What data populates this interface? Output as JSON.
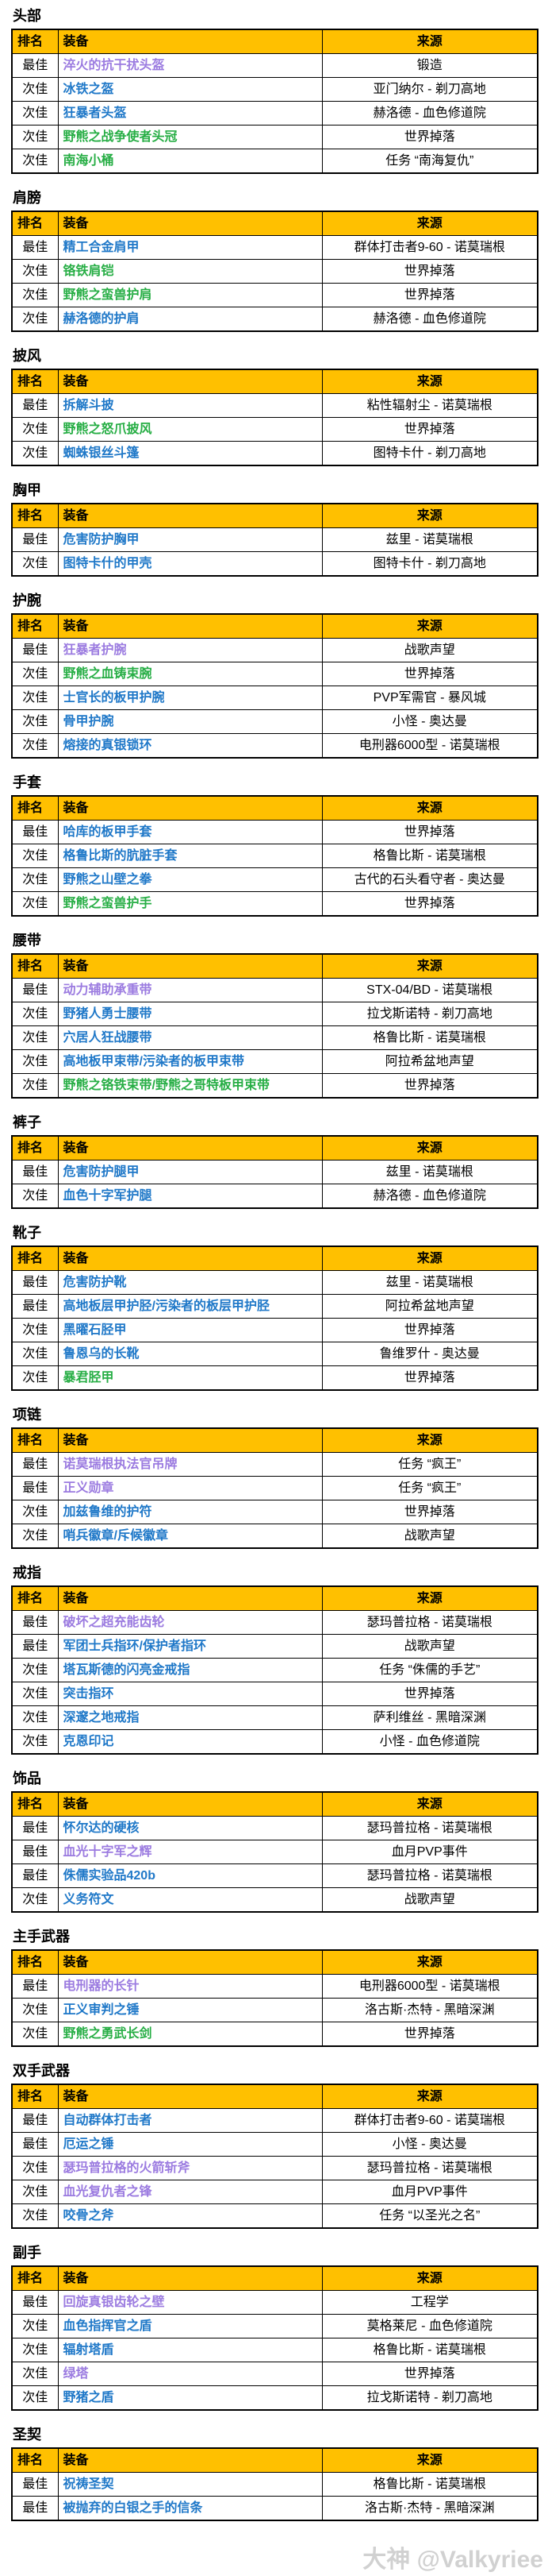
{
  "page": {
    "watermark": "大神 @Valkyriee"
  },
  "columns": {
    "rank": "排名",
    "item": "装备",
    "source": "来源"
  },
  "colors": {
    "header_bg": "#FFC000",
    "epic": "#9B7BE0",
    "rare": "#1F78C8",
    "uncommon": "#27AE45"
  },
  "sections": [
    {
      "title": "头部",
      "rows": [
        {
          "rank": "最佳",
          "item": "淬火的抗干扰头盔",
          "quality": "epic",
          "source": "锻造"
        },
        {
          "rank": "次佳",
          "item": "冰铁之盔",
          "quality": "rare",
          "source": "亚门纳尔 - 剃刀高地"
        },
        {
          "rank": "次佳",
          "item": "狂暴者头盔",
          "quality": "rare",
          "source": "赫洛德 - 血色修道院"
        },
        {
          "rank": "次佳",
          "item": "野熊之战争使者头冠",
          "quality": "uncommon",
          "source": "世界掉落"
        },
        {
          "rank": "次佳",
          "item": "南海小桶",
          "quality": "uncommon",
          "source": "任务 “南海复仇”"
        }
      ]
    },
    {
      "title": "肩膀",
      "rows": [
        {
          "rank": "最佳",
          "item": "精工合金肩甲",
          "quality": "rare",
          "source": "群体打击者9-60 - 诺莫瑞根"
        },
        {
          "rank": "次佳",
          "item": "铬铁肩铠",
          "quality": "uncommon",
          "source": "世界掉落"
        },
        {
          "rank": "次佳",
          "item": "野熊之蛮兽护肩",
          "quality": "uncommon",
          "source": "世界掉落"
        },
        {
          "rank": "次佳",
          "item": "赫洛德的护肩",
          "quality": "rare",
          "source": "赫洛德 - 血色修道院"
        }
      ]
    },
    {
      "title": "披风",
      "rows": [
        {
          "rank": "最佳",
          "item": "拆解斗披",
          "quality": "rare",
          "source": "粘性辐射尘 - 诺莫瑞根"
        },
        {
          "rank": "次佳",
          "item": "野熊之怒爪披风",
          "quality": "uncommon",
          "source": "世界掉落"
        },
        {
          "rank": "次佳",
          "item": "蜘蛛银丝斗篷",
          "quality": "rare",
          "source": "图特卡什 - 剃刀高地"
        }
      ]
    },
    {
      "title": "胸甲",
      "rows": [
        {
          "rank": "最佳",
          "item": "危害防护胸甲",
          "quality": "rare",
          "source": "兹里 - 诺莫瑞根"
        },
        {
          "rank": "次佳",
          "item": "图特卡什的甲壳",
          "quality": "rare",
          "source": "图特卡什 - 剃刀高地"
        }
      ]
    },
    {
      "title": "护腕",
      "rows": [
        {
          "rank": "最佳",
          "item": "狂暴者护腕",
          "quality": "epic",
          "source": "战歌声望"
        },
        {
          "rank": "次佳",
          "item": "野熊之血铸束腕",
          "quality": "uncommon",
          "source": "世界掉落"
        },
        {
          "rank": "次佳",
          "item": "士官长的板甲护腕",
          "quality": "rare",
          "source": "PVP军需官 - 暴风城"
        },
        {
          "rank": "次佳",
          "item": "骨甲护腕",
          "quality": "rare",
          "source": "小怪 - 奥达曼"
        },
        {
          "rank": "次佳",
          "item": "熔接的真银锁环",
          "quality": "rare",
          "source": "电刑器6000型 - 诺莫瑞根"
        }
      ]
    },
    {
      "title": "手套",
      "rows": [
        {
          "rank": "最佳",
          "item": "哈库的板甲手套",
          "quality": "rare",
          "source": "世界掉落"
        },
        {
          "rank": "次佳",
          "item": "格鲁比斯的肮脏手套",
          "quality": "rare",
          "source": "格鲁比斯 - 诺莫瑞根"
        },
        {
          "rank": "次佳",
          "item": "野熊之山壁之拳",
          "quality": "rare",
          "source": "古代的石头看守者 - 奥达曼"
        },
        {
          "rank": "次佳",
          "item": "野熊之蛮兽护手",
          "quality": "uncommon",
          "source": "世界掉落"
        }
      ]
    },
    {
      "title": "腰带",
      "rows": [
        {
          "rank": "最佳",
          "item": "动力辅助承重带",
          "quality": "epic",
          "source": "STX-04/BD - 诺莫瑞根"
        },
        {
          "rank": "次佳",
          "item": "野猪人勇士腰带",
          "quality": "rare",
          "source": "拉戈斯诺特 - 剃刀高地"
        },
        {
          "rank": "次佳",
          "item": "穴居人狂战腰带",
          "quality": "rare",
          "source": "格鲁比斯 - 诺莫瑞根"
        },
        {
          "rank": "次佳",
          "item": "高地板甲束带/污染者的板甲束带",
          "quality": "rare",
          "source": "阿拉希盆地声望"
        },
        {
          "rank": "次佳",
          "item": "野熊之铬铁束带/野熊之哥特板甲束带",
          "quality": "uncommon",
          "source": "世界掉落"
        }
      ]
    },
    {
      "title": "裤子",
      "rows": [
        {
          "rank": "最佳",
          "item": "危害防护腿甲",
          "quality": "rare",
          "source": "兹里 - 诺莫瑞根"
        },
        {
          "rank": "次佳",
          "item": "血色十字军护腿",
          "quality": "rare",
          "source": "赫洛德 - 血色修道院"
        }
      ]
    },
    {
      "title": "靴子",
      "rows": [
        {
          "rank": "最佳",
          "item": "危害防护靴",
          "quality": "rare",
          "source": "兹里 - 诺莫瑞根"
        },
        {
          "rank": "最佳",
          "item": "高地板层甲护胫/污染者的板层甲护胫",
          "quality": "rare",
          "source": "阿拉希盆地声望"
        },
        {
          "rank": "次佳",
          "item": "黑曜石胫甲",
          "quality": "rare",
          "source": "世界掉落"
        },
        {
          "rank": "次佳",
          "item": "鲁恩乌的长靴",
          "quality": "rare",
          "source": "鲁维罗什 - 奥达曼"
        },
        {
          "rank": "次佳",
          "item": "暴君胫甲",
          "quality": "uncommon",
          "source": "世界掉落"
        }
      ]
    },
    {
      "title": "项链",
      "rows": [
        {
          "rank": "最佳",
          "item": "诺莫瑞根执法官吊牌",
          "quality": "epic",
          "source": "任务 “疯王”"
        },
        {
          "rank": "最佳",
          "item": "正义勋章",
          "quality": "epic",
          "source": "任务 “疯王”"
        },
        {
          "rank": "次佳",
          "item": "加兹鲁维的护符",
          "quality": "rare",
          "source": "世界掉落"
        },
        {
          "rank": "次佳",
          "item": "哨兵徽章/斥候徽章",
          "quality": "rare",
          "source": "战歌声望"
        }
      ]
    },
    {
      "title": "戒指",
      "rows": [
        {
          "rank": "最佳",
          "item": "破坏之超充能齿轮",
          "quality": "epic",
          "source": "瑟玛普拉格 - 诺莫瑞根"
        },
        {
          "rank": "最佳",
          "item": "军团士兵指环/保护者指环",
          "quality": "rare",
          "source": "战歌声望"
        },
        {
          "rank": "次佳",
          "item": "塔瓦斯德的闪亮金戒指",
          "quality": "rare",
          "source": "任务 “侏儒的手艺”"
        },
        {
          "rank": "次佳",
          "item": "突击指环",
          "quality": "rare",
          "source": "世界掉落"
        },
        {
          "rank": "次佳",
          "item": "深邃之地戒指",
          "quality": "rare",
          "source": "萨利维丝 - 黑暗深渊"
        },
        {
          "rank": "次佳",
          "item": "克恩印记",
          "quality": "rare",
          "source": "小怪 - 血色修道院"
        }
      ]
    },
    {
      "title": "饰品",
      "rows": [
        {
          "rank": "最佳",
          "item": "怀尔达的硬核",
          "quality": "rare",
          "source": "瑟玛普拉格 - 诺莫瑞根"
        },
        {
          "rank": "最佳",
          "item": "血光十字军之辉",
          "quality": "epic",
          "source": "血月PVP事件"
        },
        {
          "rank": "最佳",
          "item": "侏儒实验品420b",
          "quality": "rare",
          "source": "瑟玛普拉格 - 诺莫瑞根"
        },
        {
          "rank": "次佳",
          "item": "义务符文",
          "quality": "rare",
          "source": "战歌声望"
        }
      ]
    },
    {
      "title": "主手武器",
      "rows": [
        {
          "rank": "最佳",
          "item": "电刑器的长针",
          "quality": "epic",
          "source": "电刑器6000型 - 诺莫瑞根"
        },
        {
          "rank": "次佳",
          "item": "正义审判之锤",
          "quality": "rare",
          "source": "洛古斯·杰特 - 黑暗深渊"
        },
        {
          "rank": "次佳",
          "item": "野熊之勇武长剑",
          "quality": "uncommon",
          "source": "世界掉落"
        }
      ]
    },
    {
      "title": "双手武器",
      "rows": [
        {
          "rank": "最佳",
          "item": "自动群体打击者",
          "quality": "rare",
          "source": "群体打击者9-60 - 诺莫瑞根"
        },
        {
          "rank": "最佳",
          "item": "厄运之锤",
          "quality": "rare",
          "source": "小怪 - 奥达曼"
        },
        {
          "rank": "次佳",
          "item": "瑟玛普拉格的火箭斩斧",
          "quality": "epic",
          "source": "瑟玛普拉格 - 诺莫瑞根"
        },
        {
          "rank": "次佳",
          "item": "血光复仇者之锋",
          "quality": "epic",
          "source": "血月PVP事件"
        },
        {
          "rank": "次佳",
          "item": "咬骨之斧",
          "quality": "rare",
          "source": "任务 “以圣光之名”"
        }
      ]
    },
    {
      "title": "副手",
      "rows": [
        {
          "rank": "最佳",
          "item": "回旋真银齿轮之壁",
          "quality": "epic",
          "source": "工程学"
        },
        {
          "rank": "次佳",
          "item": "血色指挥官之盾",
          "quality": "rare",
          "source": "莫格莱尼 - 血色修道院"
        },
        {
          "rank": "次佳",
          "item": "辐射塔盾",
          "quality": "rare",
          "source": "格鲁比斯 - 诺莫瑞根"
        },
        {
          "rank": "次佳",
          "item": "绿塔",
          "quality": "epic",
          "source": "世界掉落"
        },
        {
          "rank": "次佳",
          "item": "野猪之盾",
          "quality": "rare",
          "source": "拉戈斯诺特 - 剃刀高地"
        }
      ]
    },
    {
      "title": "圣契",
      "rows": [
        {
          "rank": "最佳",
          "item": "祝祷圣契",
          "quality": "rare",
          "source": "格鲁比斯 - 诺莫瑞根"
        },
        {
          "rank": "最佳",
          "item": "被抛弃的白银之手的信条",
          "quality": "rare",
          "source": "洛古斯·杰特 - 黑暗深渊"
        }
      ]
    }
  ]
}
